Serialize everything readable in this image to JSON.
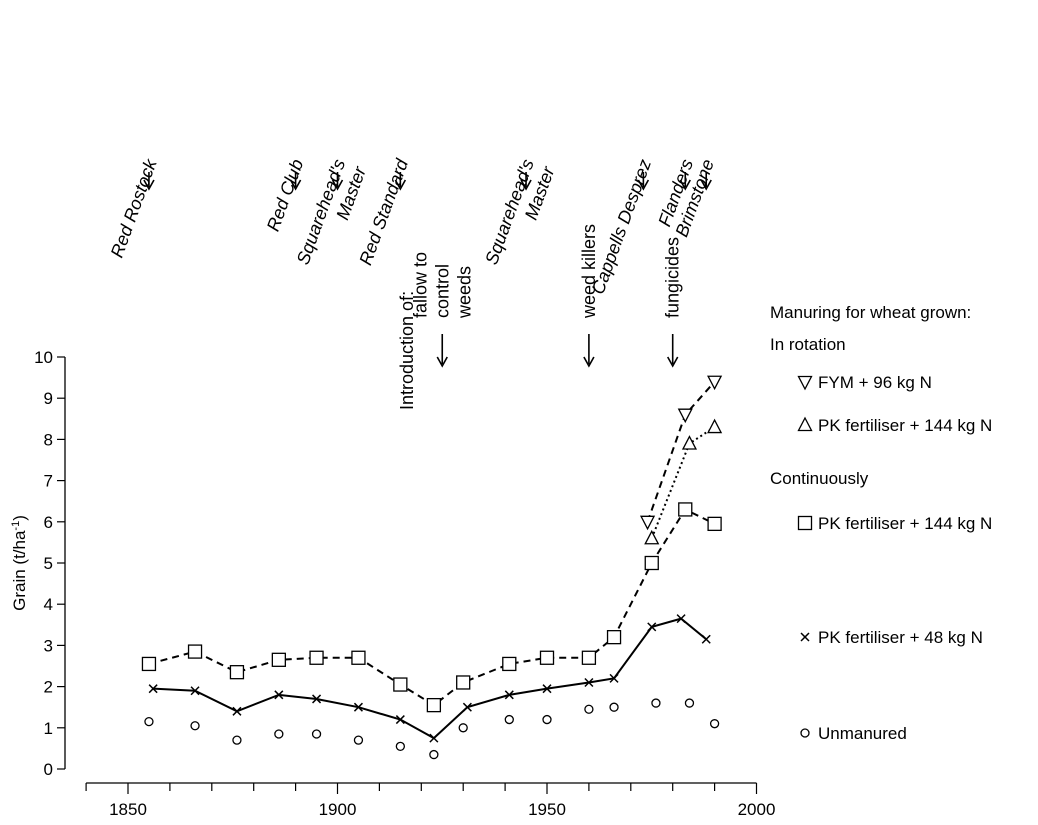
{
  "chart_data": {
    "type": "line",
    "xlabel": "",
    "ylabel": "Grain (t/ha⁻¹)",
    "xlim": [
      1840,
      2000
    ],
    "ylim": [
      0,
      10
    ],
    "xticks": [
      1850,
      1900,
      1950,
      2000
    ],
    "yticks": [
      0,
      1,
      2,
      3,
      4,
      5,
      6,
      7,
      8,
      9,
      10
    ],
    "grid": false,
    "legend_position": "right",
    "legend": {
      "title": "Manuring for wheat grown:",
      "groups": [
        {
          "heading": "In rotation",
          "entries": [
            "FYM + 96 kg N",
            "PK fertiliser + 144 kg N"
          ]
        },
        {
          "heading": "Continuously",
          "entries": [
            "PK fertiliser + 144 kg N"
          ]
        }
      ],
      "other_entries": [
        "PK fertiliser + 48 kg N",
        "Unmanured"
      ]
    },
    "varieties": [
      {
        "year": 1855,
        "label": [
          "Red Rostock"
        ]
      },
      {
        "year": 1890,
        "label": [
          "Red Club"
        ]
      },
      {
        "year": 1900,
        "label": [
          "Squarehead's",
          "Master"
        ]
      },
      {
        "year": 1915,
        "label": [
          "Red Standard"
        ]
      },
      {
        "year": 1945,
        "label": [
          "Squarehead's",
          "Master"
        ]
      },
      {
        "year": 1973,
        "label": [
          "Cappells Desprez"
        ]
      },
      {
        "year": 1983,
        "label": [
          "Flanders"
        ]
      },
      {
        "year": 1988,
        "label": [
          "Brimstone"
        ]
      }
    ],
    "introductions": {
      "heading": "Introduction of:",
      "items": [
        {
          "year": 1925,
          "label": [
            "fallow to",
            "control",
            "weeds"
          ]
        },
        {
          "year": 1960,
          "label": [
            "weed killers"
          ]
        },
        {
          "year": 1980,
          "label": [
            "fungicides"
          ]
        }
      ]
    },
    "series": [
      {
        "group": "In rotation",
        "name": "FYM + 96 kg N",
        "marker": "triangle-down",
        "line": "dashed",
        "x": [
          1974,
          1983,
          1990
        ],
        "y": [
          6.0,
          8.6,
          9.4
        ]
      },
      {
        "group": "In rotation",
        "name": "PK fertiliser + 144 kg N",
        "marker": "triangle-up",
        "line": "dotted",
        "x": [
          1975,
          1984,
          1990
        ],
        "y": [
          5.6,
          7.9,
          8.3
        ]
      },
      {
        "group": "Continuously",
        "name": "PK fertiliser + 144 kg N",
        "marker": "square",
        "line": "dashed",
        "x": [
          1855,
          1866,
          1876,
          1886,
          1895,
          1905,
          1915,
          1923,
          1930,
          1941,
          1950,
          1960,
          1966,
          1975,
          1983,
          1990
        ],
        "y": [
          2.55,
          2.85,
          2.35,
          2.65,
          2.7,
          2.7,
          2.05,
          1.55,
          2.1,
          2.55,
          2.7,
          2.7,
          3.2,
          5.0,
          6.3,
          5.95
        ]
      },
      {
        "name": "PK fertiliser + 48 kg N",
        "marker": "x",
        "line": "solid",
        "x": [
          1856,
          1866,
          1876,
          1886,
          1895,
          1905,
          1915,
          1923,
          1931,
          1941,
          1950,
          1960,
          1966,
          1975,
          1982,
          1988
        ],
        "y": [
          1.95,
          1.9,
          1.4,
          1.8,
          1.7,
          1.5,
          1.2,
          0.75,
          1.5,
          1.8,
          1.95,
          2.1,
          2.2,
          3.45,
          3.65,
          3.15
        ]
      },
      {
        "name": "Unmanured",
        "marker": "circle",
        "line": "none",
        "x": [
          1855,
          1866,
          1876,
          1886,
          1895,
          1905,
          1915,
          1923,
          1930,
          1941,
          1950,
          1960,
          1966,
          1976,
          1984,
          1990
        ],
        "y": [
          1.15,
          1.05,
          0.7,
          0.85,
          0.85,
          0.7,
          0.55,
          0.35,
          1.0,
          1.2,
          1.2,
          1.45,
          1.5,
          1.6,
          1.6,
          1.1
        ]
      }
    ]
  }
}
